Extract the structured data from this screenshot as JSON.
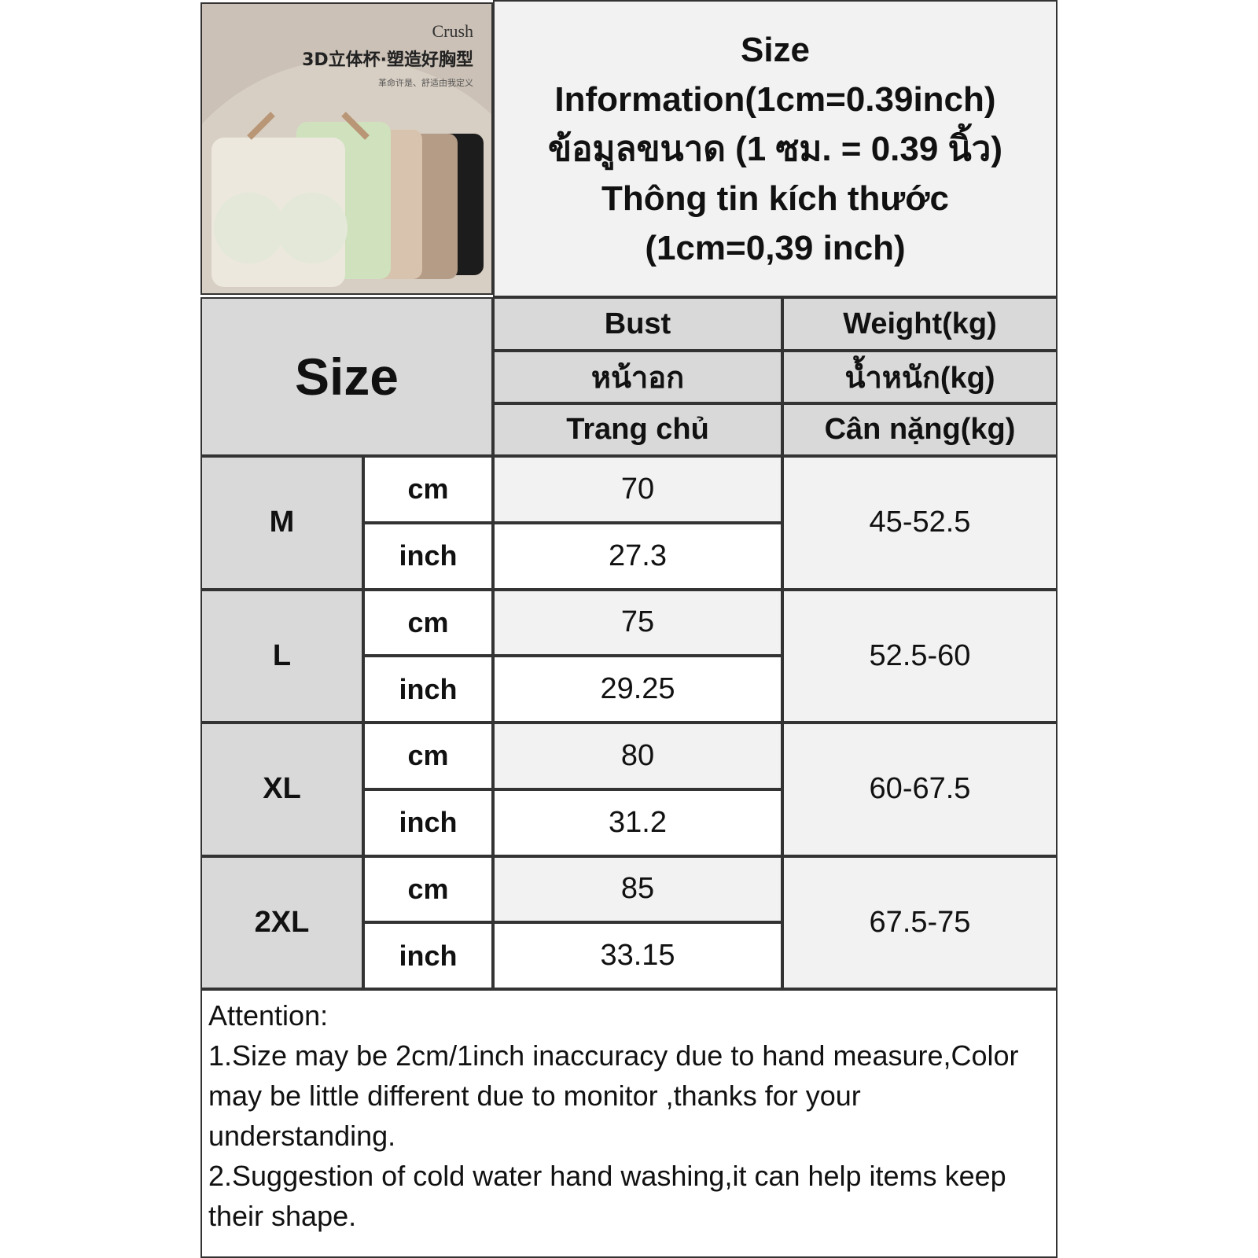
{
  "product_image": {
    "brand": "Crush",
    "headline": "3D立体杯·塑造好胸型",
    "subline": "革命许是、舒适由我定义"
  },
  "title_lines": [
    "Size",
    "Information(1cm=0.39inch)",
    "ข้อมูลขนาด (1 ซม. = 0.39 นิ้ว)",
    "Thông tin kích thước",
    "(1cm=0,39 inch)"
  ],
  "header": {
    "size": "Size",
    "bust": [
      "Bust",
      "หน้าอก",
      "Trang chủ"
    ],
    "weight": [
      "Weight(kg)",
      "น้ำหนัก(kg)",
      "Cân nặng(kg)"
    ]
  },
  "units": {
    "cm": "cm",
    "inch": "inch"
  },
  "rows": [
    {
      "size": "M",
      "bust_cm": "70",
      "bust_inch": "27.3",
      "weight": "45-52.5"
    },
    {
      "size": "L",
      "bust_cm": "75",
      "bust_inch": "29.25",
      "weight": "52.5-60"
    },
    {
      "size": "XL",
      "bust_cm": "80",
      "bust_inch": "31.2",
      "weight": "60-67.5"
    },
    {
      "size": "2XL",
      "bust_cm": "85",
      "bust_inch": "33.15",
      "weight": "67.5-75"
    }
  ],
  "attention": [
    "Attention:",
    "1.Size may be 2cm/1inch inaccuracy due to hand measure,Color may be little different due to monitor ,thanks for your understanding.",
    "2.Suggestion of cold water hand washing,it can help items keep their shape."
  ]
}
